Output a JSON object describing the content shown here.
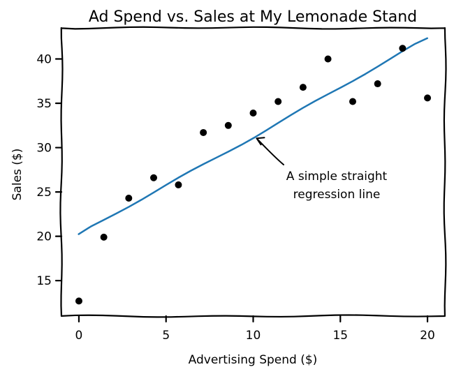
{
  "chart_data": {
    "type": "scatter",
    "title": "Ad Spend vs. Sales at My Lemonade Stand",
    "xlabel": "Advertising Spend ($)",
    "ylabel": "Sales ($)",
    "xlim": [
      -1,
      21
    ],
    "ylim": [
      11,
      43.5
    ],
    "xticks": [
      0,
      5,
      10,
      15,
      20
    ],
    "yticks": [
      15,
      20,
      25,
      30,
      35,
      40
    ],
    "grid": false,
    "style": "xkcd",
    "points": {
      "x": [
        0,
        1.43,
        2.86,
        4.29,
        5.71,
        7.14,
        8.57,
        10.0,
        11.43,
        12.86,
        14.29,
        15.71,
        17.14,
        18.57,
        20.0
      ],
      "y": [
        12.7,
        19.9,
        24.3,
        26.6,
        25.8,
        31.7,
        32.5,
        33.9,
        35.2,
        36.8,
        40.0,
        35.2,
        37.2,
        41.2,
        35.6
      ],
      "color": "#000000"
    },
    "line": {
      "x": [
        0,
        20
      ],
      "y": [
        20.2,
        42.3
      ],
      "color": "#1f77b4"
    },
    "annotation": {
      "text_lines": [
        "A simple straight",
        "regression line"
      ],
      "target": [
        10.2,
        31.2
      ]
    }
  }
}
